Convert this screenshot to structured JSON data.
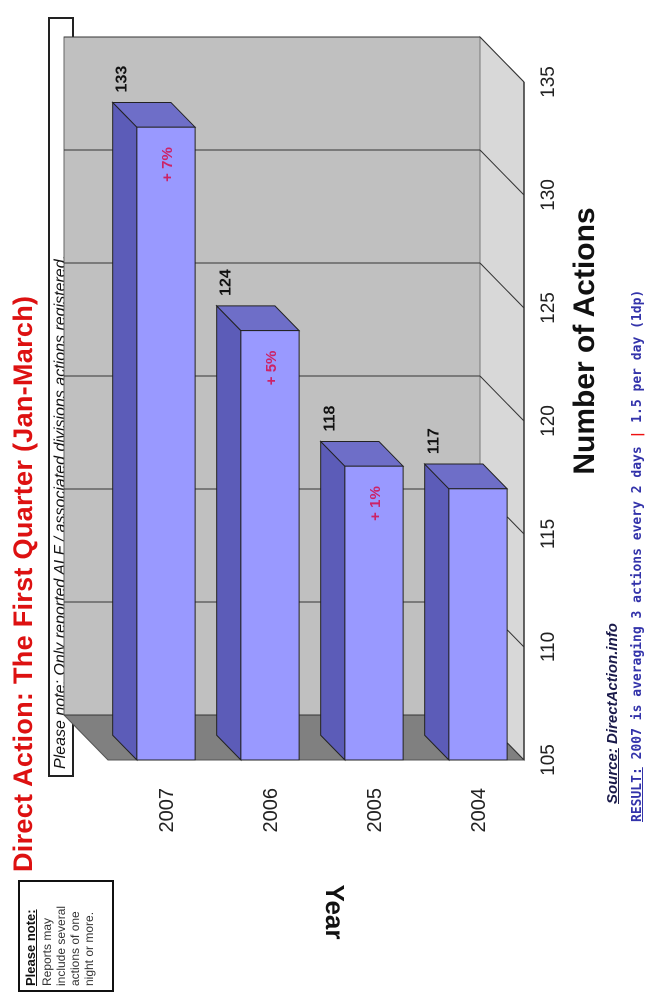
{
  "note_box": {
    "title": "Please note:",
    "body": "Reports may include several actions of one night or more."
  },
  "title": "Direct Action: The First Quarter (Jan-March)",
  "note_inline": "Please note: Only reported ALF / associated divisions actions registered.",
  "source": {
    "label": "Source:",
    "text": "DirectAction.info"
  },
  "result": {
    "label": "RESULT:",
    "text": "2007 is averaging 3 actions every 2 days",
    "separator": "|",
    "per_day": "1.5 per day (1dp)"
  },
  "chart_data": {
    "type": "bar",
    "orientation": "horizontal",
    "style": "3d",
    "categories": [
      "2007",
      "2006",
      "2005",
      "2004"
    ],
    "values": [
      133,
      124,
      118,
      117
    ],
    "value_labels": [
      "133",
      "124",
      "118",
      "117"
    ],
    "change_labels": [
      "+ 7%",
      "+ 5%",
      "+ 1%",
      ""
    ],
    "xlabel": "Number of Actions",
    "ylabel": "Year",
    "xlim": [
      105,
      135
    ],
    "xticks": [
      "105",
      "110",
      "115",
      "120",
      "125",
      "130",
      "135"
    ],
    "grid": true,
    "colors": {
      "bar_front": "#9999ff",
      "bar_top": "#5c5cb8",
      "bar_side": "#6e6ec8",
      "wall": "#c0c0c0",
      "floor": "#808080",
      "change_text": "#cc2266"
    }
  }
}
